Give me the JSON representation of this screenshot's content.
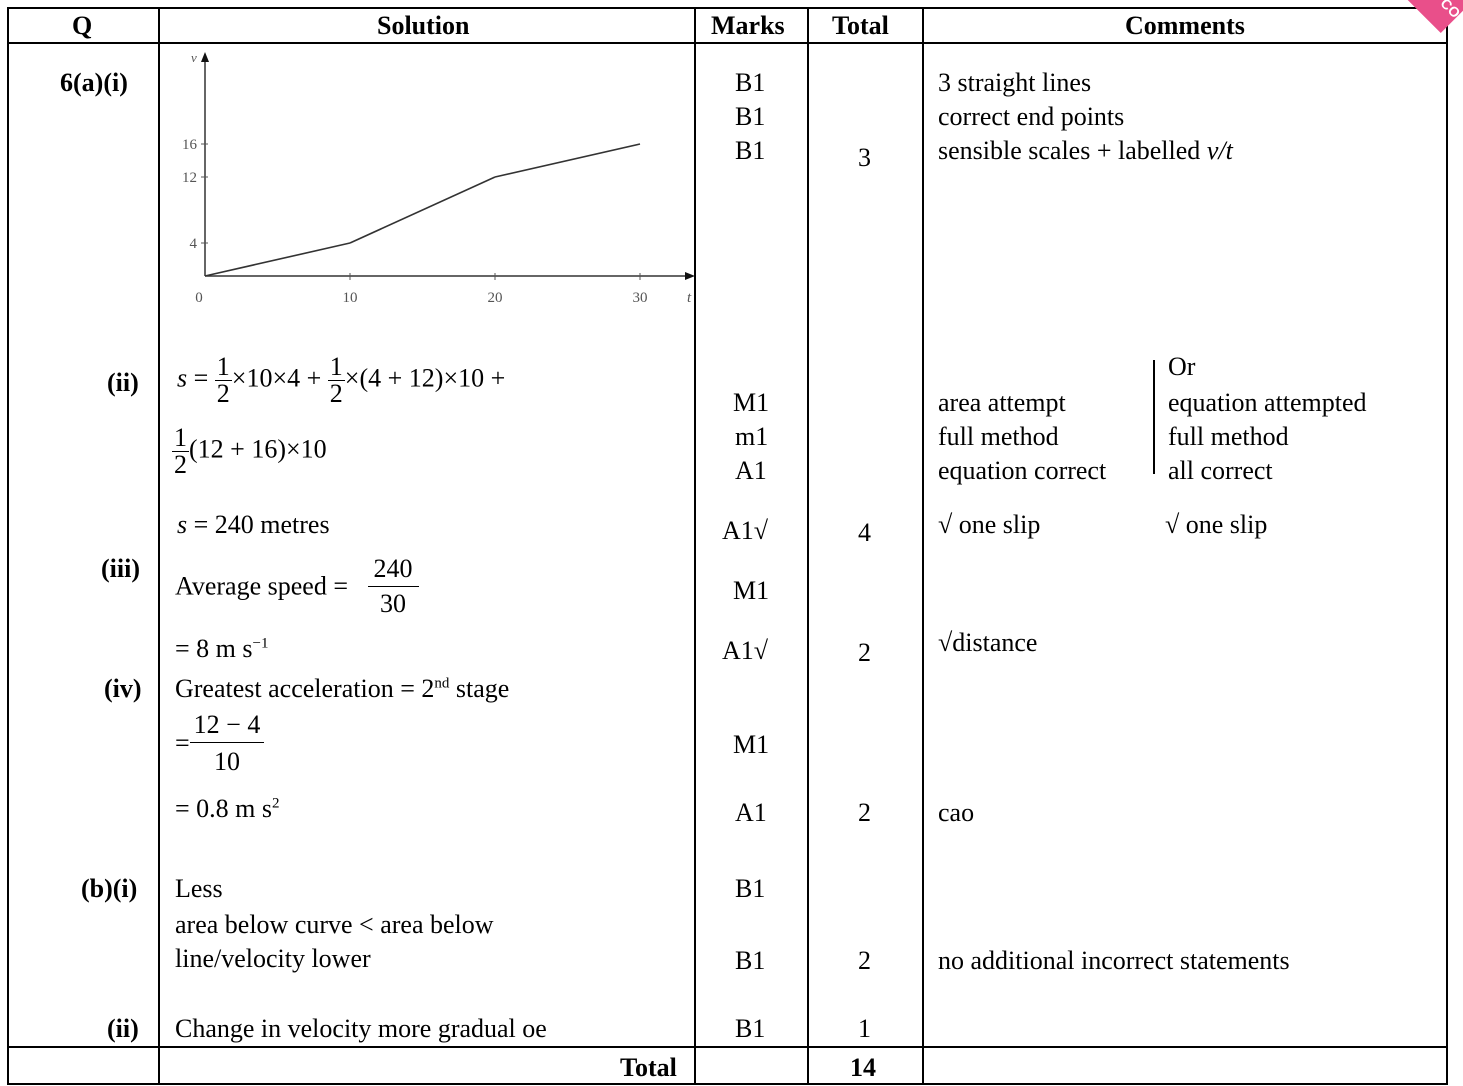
{
  "headers": {
    "q": "Q",
    "solution": "Solution",
    "marks": "Marks",
    "total": "Total",
    "comments": "Comments"
  },
  "corner_badge": "CO",
  "chart_data": {
    "type": "line",
    "ylabel": "v",
    "xlabel": "t",
    "x": [
      0,
      10,
      20,
      30
    ],
    "y": [
      0,
      4,
      12,
      16
    ],
    "xticks": [
      "0",
      "10",
      "20",
      "30"
    ],
    "yticks": [
      "4",
      "12",
      "16"
    ],
    "xlim": [
      0,
      33
    ],
    "ylim": [
      0,
      18
    ]
  },
  "q6ai": {
    "label": "6(a)(i)",
    "marks": [
      "B1",
      "B1",
      "B1"
    ],
    "total": "3",
    "comments": [
      "3 straight lines",
      "correct end points",
      "sensible scales + labelled "
    ],
    "comment_vt": "v/t"
  },
  "q6aii": {
    "label": "(ii)",
    "line1": {
      "s": "s",
      "eq": " = ",
      "f1num": "1",
      "f1den": "2",
      "m1": "×10×4 + ",
      "f2num": "1",
      "f2den": "2",
      "m2": "×(4 + 12)×10 +"
    },
    "line2": {
      "fnum": "1",
      "fden": "2",
      "rest": "(12 + 16)×10"
    },
    "line3": {
      "s": "s",
      "rest": " = 240 metres"
    },
    "marks": [
      "M1",
      "m1",
      "A1",
      "A1√"
    ],
    "total": "4",
    "or_label": "Or",
    "comments_left": [
      "area attempt",
      "full method",
      "equation correct",
      "√ one slip"
    ],
    "comments_right": [
      "equation attempted",
      "full method",
      "all correct",
      "√ one slip"
    ]
  },
  "q6aiii": {
    "label": "(iii)",
    "prefix": "Average speed  = ",
    "num": "240",
    "den": "30",
    "result": "= 8 m s",
    "result_sup": "−1",
    "marks": [
      "M1",
      "A1√"
    ],
    "total": "2",
    "comment": "√distance"
  },
  "q6aiv": {
    "label": "(iv)",
    "line1_pre": "Greatest acceleration  = 2",
    "line1_sup": "nd",
    "line1_post": " stage",
    "num": "12 − 4",
    "den": "10",
    "eq": "=",
    "result": "= 0.8 m s",
    "result_sup": "2",
    "marks": [
      "M1",
      "A1"
    ],
    "total": "2",
    "comment": "cao"
  },
  "q6bi": {
    "label": "(b)(i)",
    "lines": [
      "Less",
      "area below curve < area below",
      "line/velocity lower"
    ],
    "marks": [
      "B1",
      "B1"
    ],
    "total": "2",
    "comment": "no additional incorrect statements"
  },
  "q6bii": {
    "label": "(ii)",
    "line": "Change in velocity more gradual oe",
    "marks": "B1",
    "total": "1"
  },
  "footer": {
    "label": "Total",
    "value": "14"
  }
}
